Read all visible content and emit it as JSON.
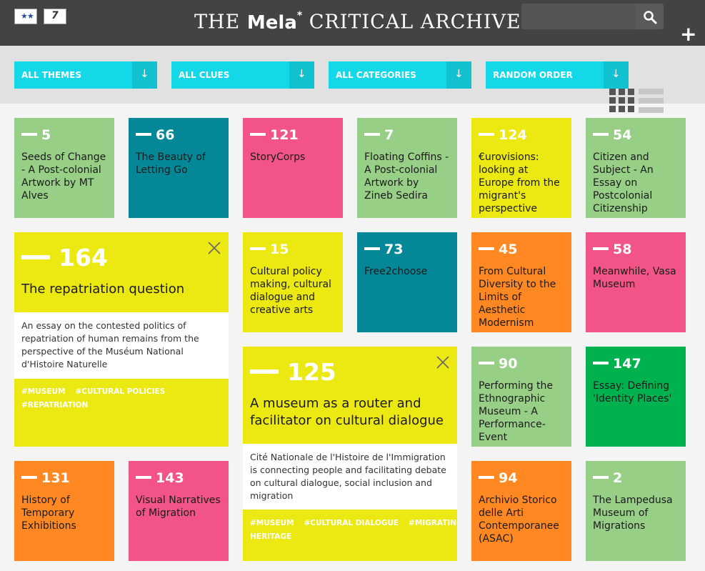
{
  "header": {
    "title_pre": "THE ",
    "title_brand": "Mela",
    "title_star": "*",
    "title_post": " CRITICAL ARCHIVE",
    "search_placeholder": "",
    "add_label": "+"
  },
  "filters": [
    {
      "label": "ALL THEMES"
    },
    {
      "label": "ALL CLUES"
    },
    {
      "label": "ALL CATEGORIES"
    },
    {
      "label": "RANDOM ORDER"
    }
  ],
  "tiles": [
    {
      "num": "5",
      "title": "Seeds of Change - A Post-colonial Artwork by MT Alves"
    },
    {
      "num": "66",
      "title": "The Beauty of Letting Go"
    },
    {
      "num": "121",
      "title": "StoryCorps"
    },
    {
      "num": "7",
      "title": "Floating Coffins - A Post-colonial Artwork by Zineb Sedira"
    },
    {
      "num": "124",
      "title": "€urovisions: looking at Europe from the migrant's perspective"
    },
    {
      "num": "54",
      "title": "Citizen and Subject - An Essay on Postcolonial Citizenship"
    },
    {
      "num": "15",
      "title": "Cultural policy making, cultural dialogue and creative arts"
    },
    {
      "num": "73",
      "title": "Free2choose"
    },
    {
      "num": "45",
      "title": "From Cultural Diversity to the Limits of Aesthetic Modernism"
    },
    {
      "num": "58",
      "title": "Meanwhile, Vasa Museum"
    },
    {
      "num": "90",
      "title": "Performing the Ethnographic Museum - A Performance-Event"
    },
    {
      "num": "147",
      "title": "Essay: Defining 'Identity Places'"
    },
    {
      "num": "131",
      "title": "History of Temporary Exhibitions"
    },
    {
      "num": "143",
      "title": "Visual Narratives of Migration"
    },
    {
      "num": "94",
      "title": "Archivio Storico delle Arti Contemporanee (ASAC)"
    },
    {
      "num": "2",
      "title": "The Lampedusa Museum of Migrations"
    }
  ],
  "expanded": [
    {
      "num": "164",
      "title": "The repatriation question",
      "description": "An essay on the contested politics of repatriation of human remains from the perspective of the Muséum National d'Histoire Naturelle",
      "tags": [
        "#MUSEUM",
        "#CULTURAL POLICIES",
        "#REPATRIATION"
      ]
    },
    {
      "num": "125",
      "title": "A museum as a router and facilitator on cultural dialogue",
      "description": "Cité Nationale de l'Histoire de l'Immigration is connecting people and facilitating debate on cultural dialogue, social inclusion and migration",
      "tags": [
        "#MUSEUM",
        "#CULTURAL DIALOGUE",
        "#MIGRATING HERITAGE"
      ]
    }
  ],
  "colors": {
    "green": "#98cf87",
    "teal": "#048898",
    "pink": "#f25487",
    "yellow": "#ece812",
    "orange": "#ff8823",
    "dark_green": "#00b24f",
    "filter_cyan": "#14d7e8",
    "header": "#434343"
  }
}
